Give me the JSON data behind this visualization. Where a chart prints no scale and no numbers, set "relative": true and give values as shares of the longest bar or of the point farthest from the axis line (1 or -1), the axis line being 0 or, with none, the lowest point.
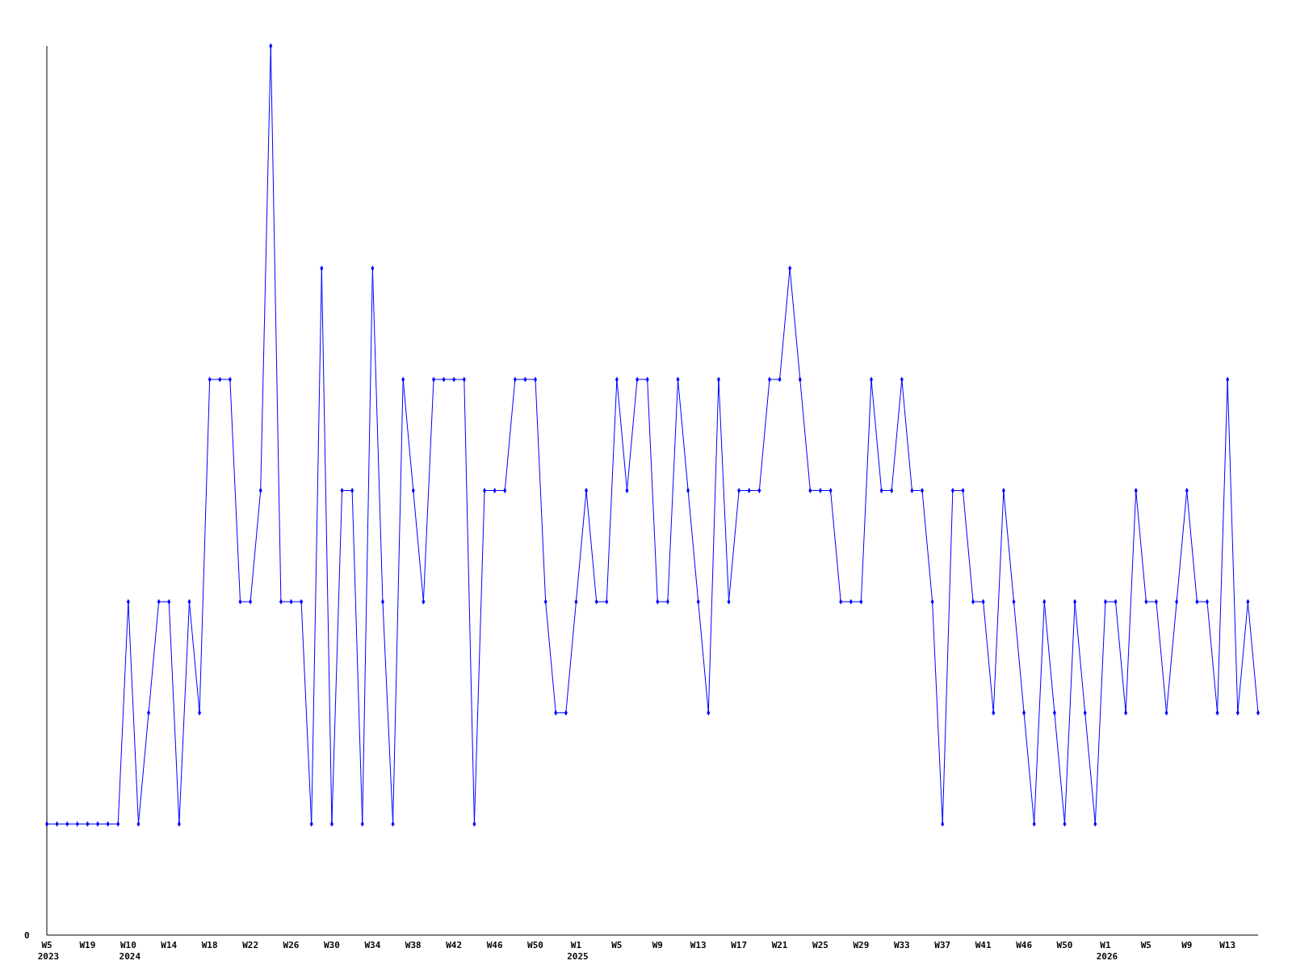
{
  "chart_data": {
    "type": "line",
    "relative": true,
    "marker": "diamond",
    "annotations": [
      "0"
    ],
    "categories": [
      "W5\n2023",
      null,
      null,
      null,
      "W19",
      null,
      null,
      null,
      "W10\n2024",
      null,
      null,
      null,
      "W14",
      null,
      null,
      null,
      "W18",
      null,
      null,
      null,
      "W22",
      null,
      null,
      null,
      "W26",
      null,
      null,
      null,
      "W30",
      null,
      null,
      null,
      "W34",
      null,
      null,
      null,
      "W38",
      null,
      null,
      null,
      "W42",
      null,
      null,
      null,
      "W46",
      null,
      null,
      null,
      "W50",
      null,
      null,
      null,
      "W1\n2025",
      null,
      null,
      null,
      "W5",
      null,
      null,
      null,
      "W9",
      null,
      null,
      null,
      "W13",
      null,
      null,
      null,
      "W17",
      null,
      null,
      null,
      "W21",
      null,
      null,
      null,
      "W25",
      null,
      null,
      null,
      "W29",
      null,
      null,
      null,
      "W33",
      null,
      null,
      null,
      "W37",
      null,
      null,
      null,
      "W41",
      null,
      null,
      null,
      "W46",
      null,
      null,
      null,
      "W50",
      null,
      null,
      null,
      "W1\n2026",
      null,
      null,
      null,
      "W5",
      null,
      null,
      null,
      "W9",
      null,
      null,
      null,
      "W13",
      null,
      null,
      null
    ],
    "series": [
      {
        "color": "#0000ff",
        "values": [
          0.125,
          0.125,
          0.125,
          0.125,
          0.125,
          0.125,
          0.125,
          0.125,
          0.375,
          0.125,
          0.25,
          0.375,
          0.375,
          0.125,
          0.375,
          0.25,
          0.625,
          0.625,
          0.625,
          0.375,
          0.375,
          0.5,
          1,
          0.375,
          0.375,
          0.375,
          0.125,
          0.75,
          0.125,
          0.5,
          0.5,
          0.125,
          0.75,
          0.375,
          0.125,
          0.625,
          0.5,
          0.375,
          0.625,
          0.625,
          0.625,
          0.625,
          0.125,
          0.5,
          0.5,
          0.5,
          0.625,
          0.625,
          0.625,
          0.375,
          0.25,
          0.25,
          0.375,
          0.5,
          0.375,
          0.375,
          0.625,
          0.5,
          0.625,
          0.625,
          0.375,
          0.375,
          0.625,
          0.5,
          0.375,
          0.25,
          0.625,
          0.375,
          0.5,
          0.5,
          0.5,
          0.625,
          0.625,
          0.75,
          0.625,
          0.5,
          0.5,
          0.5,
          0.375,
          0.375,
          0.375,
          0.625,
          0.5,
          0.5,
          0.625,
          0.5,
          0.5,
          0.375,
          0.125,
          0.5,
          0.5,
          0.375,
          0.375,
          0.25,
          0.5,
          0.375,
          0.25,
          0.125,
          0.375,
          0.25,
          0.125,
          0.375,
          0.25,
          0.125,
          0.375,
          0.375,
          0.25,
          0.5,
          0.375,
          0.375,
          0.25,
          0.375,
          0.5,
          0.375,
          0.375,
          0.25,
          0.625,
          0.25,
          0.375,
          0.25
        ]
      }
    ]
  }
}
